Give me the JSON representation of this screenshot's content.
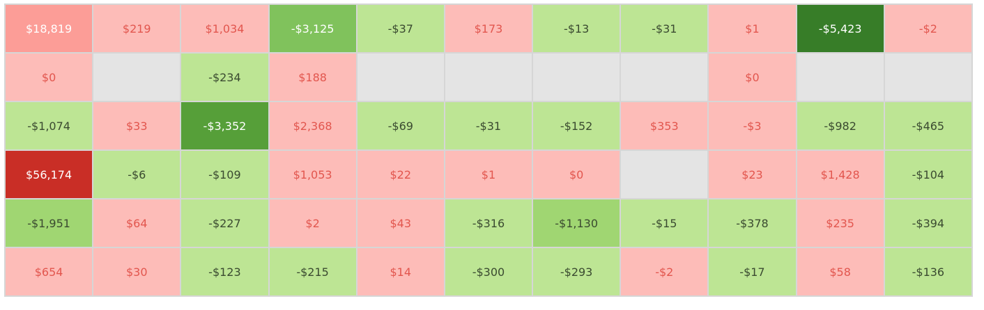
{
  "table": {
    "rows": [
      [
        "$18,819",
        "$219",
        "$1,034",
        "-$3,125",
        "-$37",
        "$173",
        "-$13",
        "-$31",
        "$1",
        "-$5,423",
        "-$2"
      ],
      [
        "$0",
        null,
        "-$234",
        "$188",
        null,
        null,
        null,
        null,
        "$0",
        null,
        null
      ],
      [
        "-$1,074",
        "$33",
        "-$3,352",
        "$2,368",
        "-$69",
        "-$31",
        "-$152",
        "$353",
        "-$3",
        "-$982",
        "-$465"
      ],
      [
        "$56,174",
        "-$6",
        "-$109",
        "$1,053",
        "$22",
        "$1",
        "$0",
        null,
        "$23",
        "$1,428",
        "-$104"
      ],
      [
        "-$1,951",
        "$64",
        "-$227",
        "$2",
        "$43",
        "-$316",
        "-$1,130",
        "-$15",
        "-$378",
        "$235",
        "-$394"
      ],
      [
        "$654",
        "$30",
        "-$123",
        "-$215",
        "$14",
        "-$300",
        "-$293",
        "-$2",
        "-$17",
        "$58",
        "-$136"
      ]
    ],
    "cell_colors": [
      [
        "#fc9d97",
        "#fdbcb8",
        "#fdbcb8",
        "#80c25c",
        "#bde594",
        "#fdbcb8",
        "#bde594",
        "#bde594",
        "#fdbcb8",
        "#377d28",
        "#fdbcb8"
      ],
      [
        "#fdbcb8",
        "#e4e4e4",
        "#bde594",
        "#fdbcb8",
        "#e4e4e4",
        "#e4e4e4",
        "#e4e4e4",
        "#e4e4e4",
        "#fdbcb8",
        "#e4e4e4",
        "#e4e4e4"
      ],
      [
        "#bde594",
        "#fdbcb8",
        "#569f39",
        "#fdbcb8",
        "#bde594",
        "#bde594",
        "#bde594",
        "#fdbcb8",
        "#fdbcb8",
        "#bde594",
        "#bde594"
      ],
      [
        "#c92e26",
        "#bde594",
        "#bde594",
        "#fdbcb8",
        "#fdbcb8",
        "#fdbcb8",
        "#fdbcb8",
        "#e4e4e4",
        "#fdbcb8",
        "#fdbcb8",
        "#bde594"
      ],
      [
        "#a0d672",
        "#fdbcb8",
        "#bde594",
        "#fdbcb8",
        "#fdbcb8",
        "#bde594",
        "#a0d672",
        "#bde594",
        "#bde594",
        "#fdbcb8",
        "#bde594"
      ],
      [
        "#fdbcb8",
        "#fdbcb8",
        "#bde594",
        "#bde594",
        "#fdbcb8",
        "#bde594",
        "#bde594",
        "#fdbcb8",
        "#bde594",
        "#fdbcb8",
        "#bde594"
      ]
    ]
  }
}
